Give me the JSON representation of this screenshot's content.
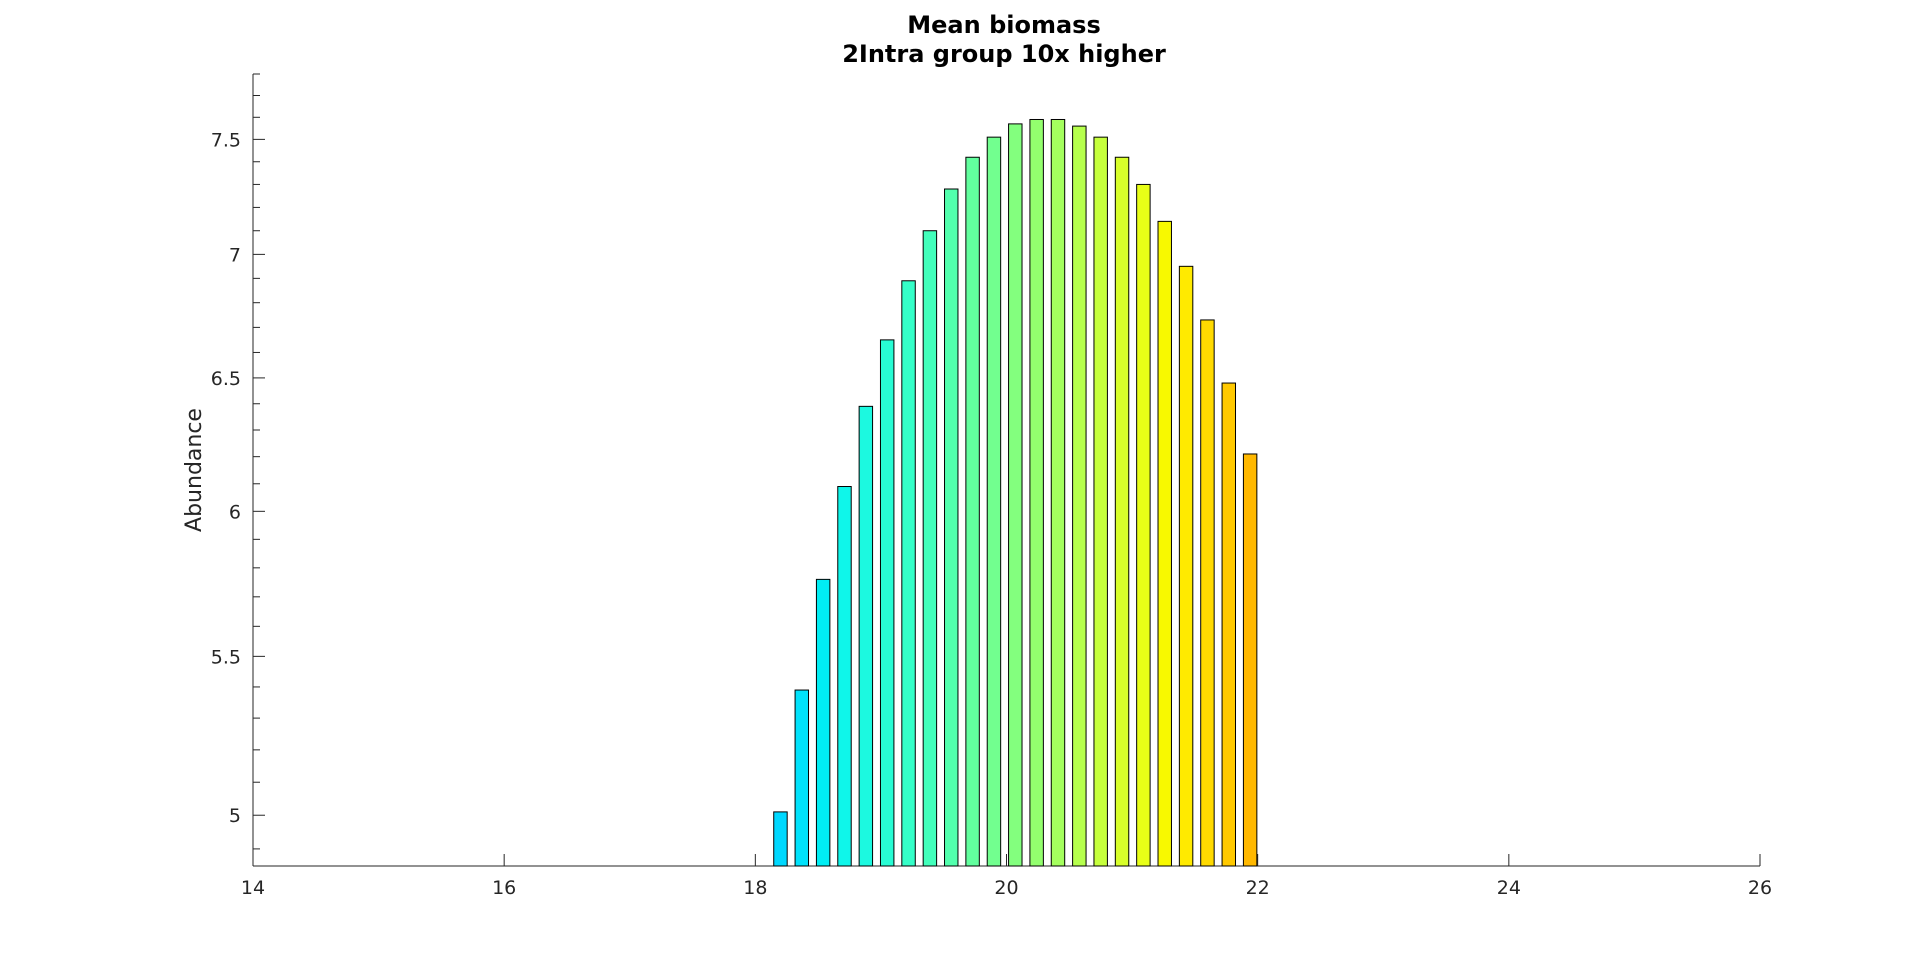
{
  "chart_data": {
    "type": "bar",
    "title": "Mean biomass",
    "subtitle": "2Intra group 10x higher",
    "xlabel": "",
    "ylabel": "Abundance",
    "xlim": [
      14,
      26
    ],
    "ylim": [
      4.85,
      7.8
    ],
    "yscale": "log",
    "grid": false,
    "x_ticks": [
      "14",
      "16",
      "18",
      "20",
      "22",
      "24",
      "26"
    ],
    "y_ticks": [
      "5",
      "5.5",
      "6",
      "6.5",
      "7",
      "7.5"
    ],
    "x": [
      18.2,
      18.37,
      18.54,
      18.71,
      18.88,
      19.05,
      19.22,
      19.39,
      19.56,
      19.73,
      19.9,
      20.07,
      20.24,
      20.41,
      20.58,
      20.75,
      20.92,
      21.09,
      21.26,
      21.43,
      21.6,
      21.77,
      21.94
    ],
    "values": [
      5.01,
      5.39,
      5.76,
      6.09,
      6.39,
      6.65,
      6.89,
      7.1,
      7.28,
      7.42,
      7.51,
      7.57,
      7.59,
      7.59,
      7.56,
      7.51,
      7.42,
      7.3,
      7.14,
      6.95,
      6.73,
      6.48,
      6.21
    ],
    "colors": [
      "#00D8FF",
      "#00E2FB",
      "#00EEF4",
      "#0FF6EA",
      "#1CF9E0",
      "#28FCD4",
      "#35FEC8",
      "#42FFBB",
      "#52FFAD",
      "#62FF9E",
      "#72FF8F",
      "#83FF7E",
      "#93FF6E",
      "#A5FF5E",
      "#B6FF4D",
      "#C6FF3D",
      "#D8FF2A",
      "#E8FF17",
      "#F8F900",
      "#FFEA00",
      "#FFDA00",
      "#FFC900",
      "#FFB800"
    ]
  }
}
